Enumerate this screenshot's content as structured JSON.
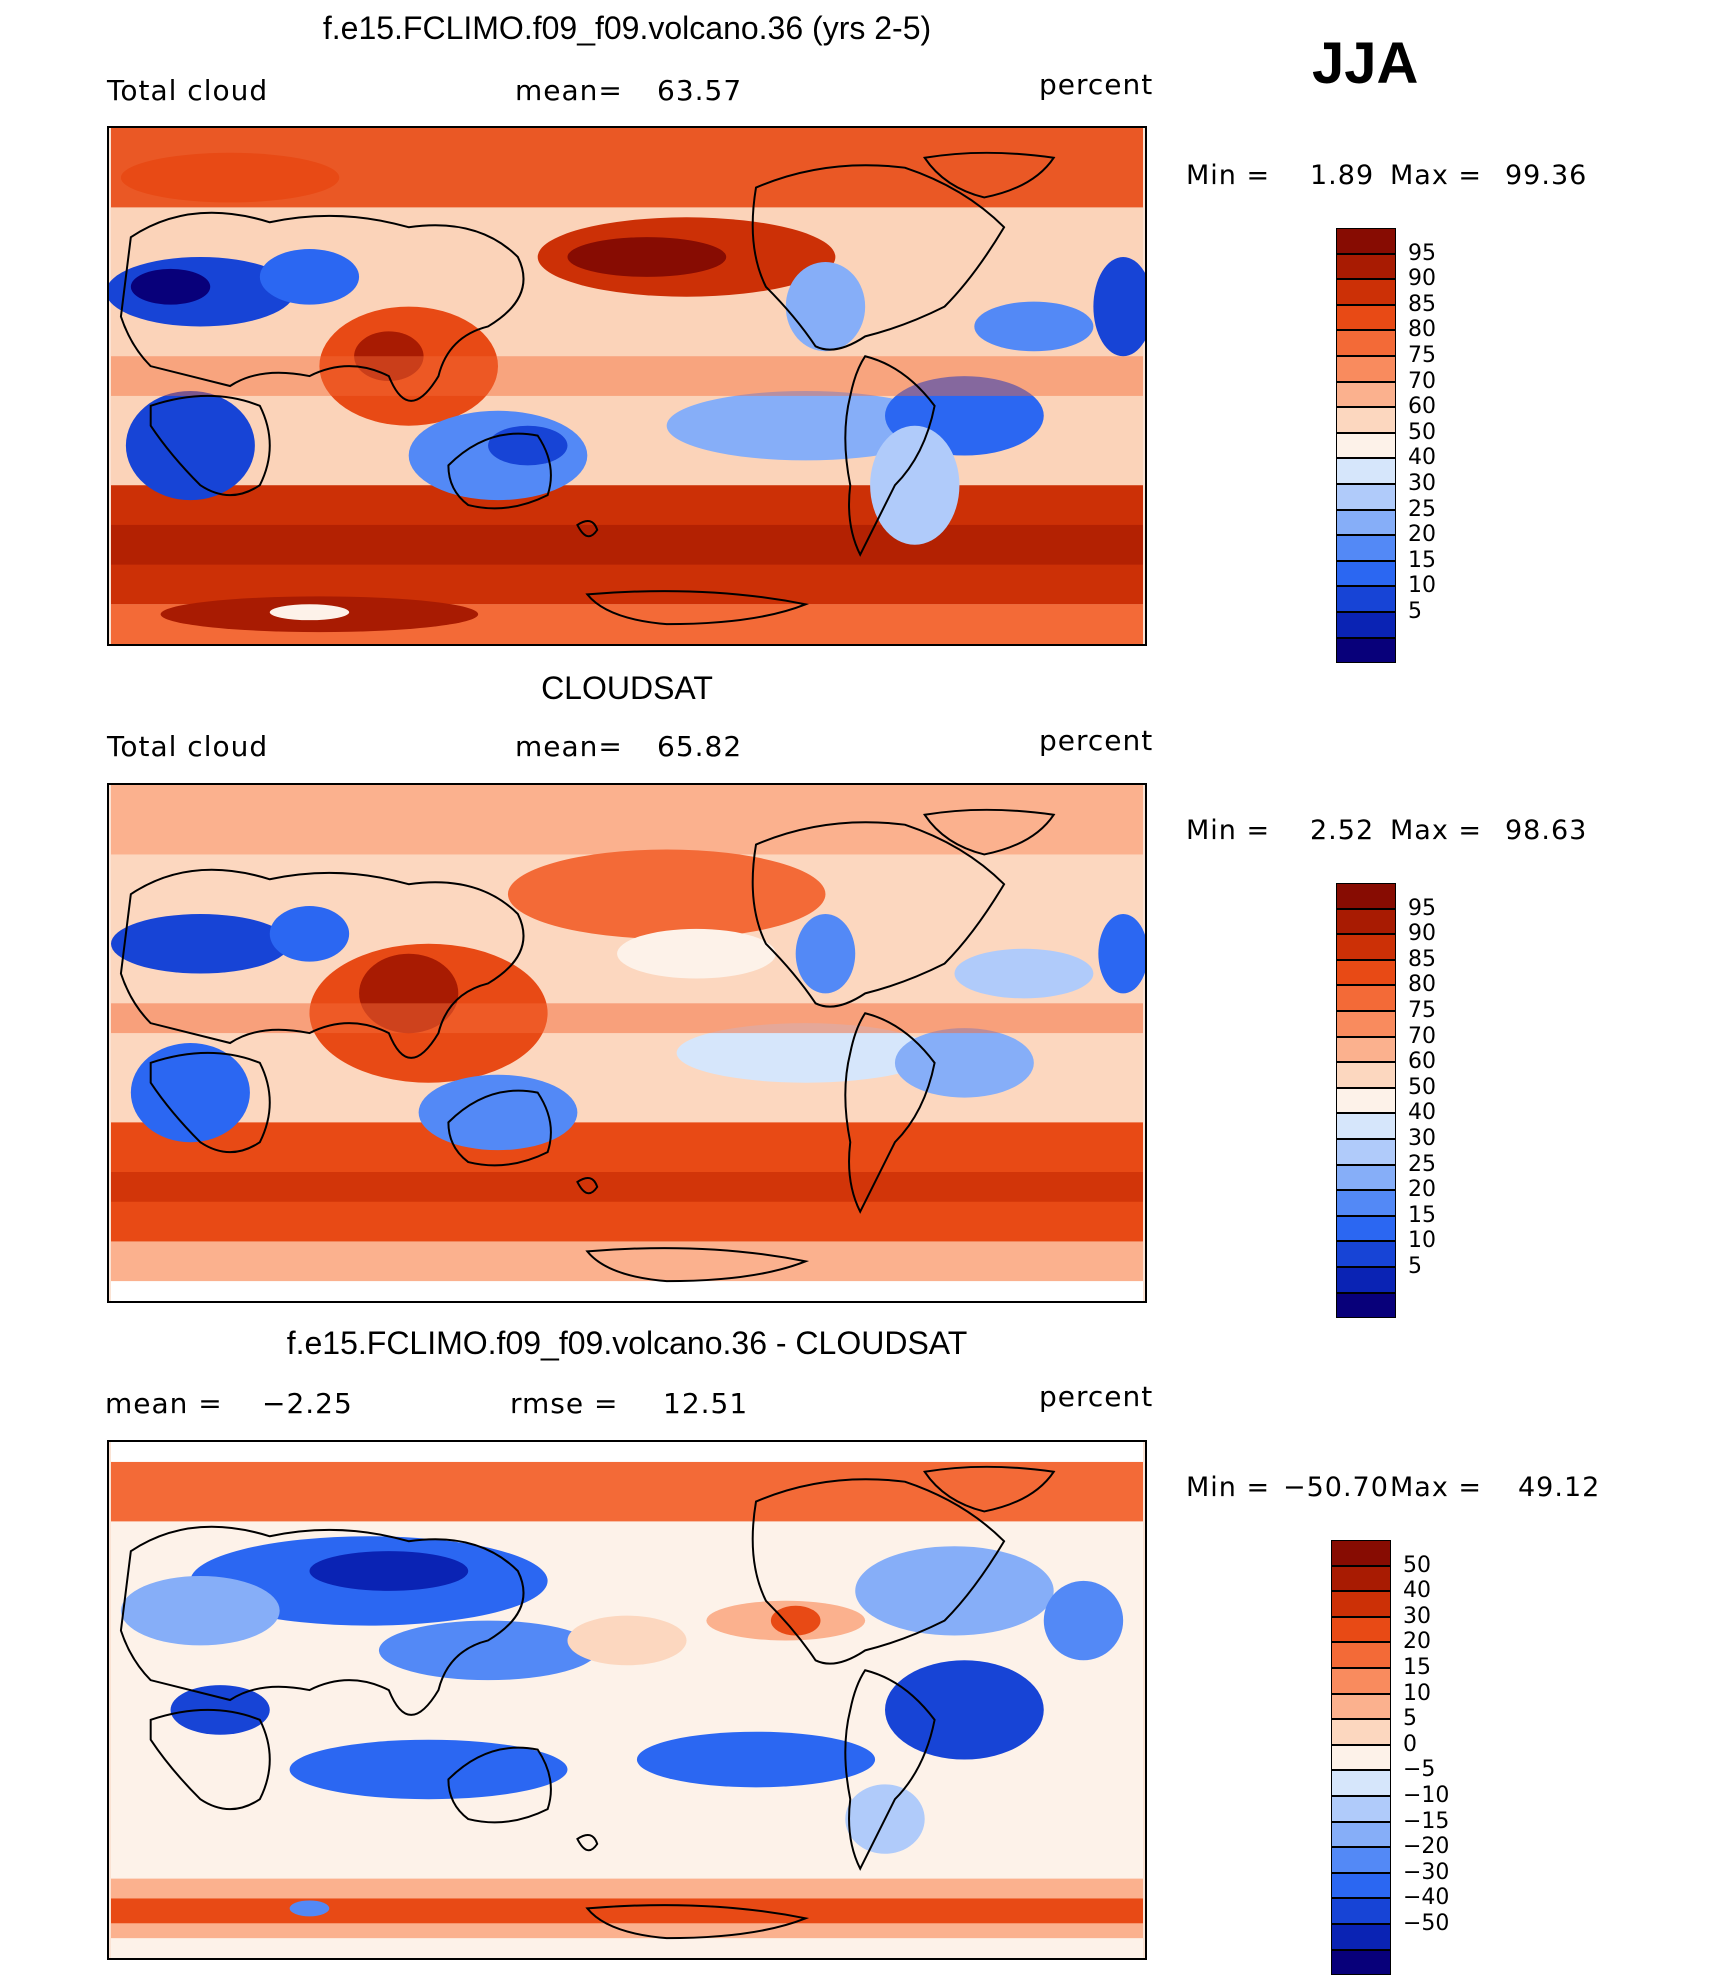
{
  "season": "JJA",
  "colors": {
    "scale": [
      "#08007a",
      "#0a23b4",
      "#1744d6",
      "#2b67f2",
      "#5389f6",
      "#86aef8",
      "#b0cbfa",
      "#d6e6fb",
      "#fdf2e9",
      "#fcd7bf",
      "#fbb18e",
      "#f98b5e",
      "#f36a37",
      "#e84a15",
      "#cc3006",
      "#a81b02",
      "#870c02"
    ],
    "continent_outline": "#000000"
  },
  "panels": [
    {
      "title": "f.e15.FCLIMO.f09_f09.volcano.36 (yrs 2-5)",
      "left_label": "Total cloud",
      "center_label": "mean=",
      "center_value": "63.57",
      "right_label": "percent",
      "min_label": "Min =",
      "min_value": "1.89",
      "max_label": "Max =",
      "max_value": "99.36",
      "colorbar_labels": [
        "95",
        "90",
        "85",
        "80",
        "75",
        "70",
        "60",
        "50",
        "40",
        "30",
        "25",
        "20",
        "15",
        "10",
        "5"
      ]
    },
    {
      "title": "CLOUDSAT",
      "left_label": "Total cloud",
      "center_label": "mean=",
      "center_value": "65.82",
      "right_label": "percent",
      "min_label": "Min =",
      "min_value": "2.52",
      "max_label": "Max =",
      "max_value": "98.63",
      "colorbar_labels": [
        "95",
        "90",
        "85",
        "80",
        "75",
        "70",
        "60",
        "50",
        "40",
        "30",
        "25",
        "20",
        "15",
        "10",
        "5"
      ]
    },
    {
      "title": "f.e15.FCLIMO.f09_f09.volcano.36 - CLOUDSAT",
      "left_label": "mean =",
      "left_value": "−2.25",
      "center_label": "rmse =",
      "center_value": "12.51",
      "right_label": "percent",
      "min_label": "Min =",
      "min_value": "−50.70",
      "max_label": "Max =",
      "max_value": "49.12",
      "colorbar_labels": [
        "50",
        "40",
        "30",
        "20",
        "15",
        "10",
        "5",
        "0",
        "−5",
        "−10",
        "−15",
        "−20",
        "−30",
        "−40",
        "−50"
      ]
    }
  ],
  "chart_data": [
    {
      "type": "heatmap",
      "title": "f.e15.FCLIMO.f09_f09.volcano.36 (yrs 2-5)",
      "variable": "Total cloud",
      "units": "percent",
      "mean": 63.57,
      "min": 1.89,
      "max": 99.36,
      "levels": [
        5,
        10,
        15,
        20,
        25,
        30,
        40,
        50,
        60,
        70,
        75,
        80,
        85,
        90,
        95
      ]
    },
    {
      "type": "heatmap",
      "title": "CLOUDSAT",
      "variable": "Total cloud",
      "units": "percent",
      "mean": 65.82,
      "min": 2.52,
      "max": 98.63,
      "levels": [
        5,
        10,
        15,
        20,
        25,
        30,
        40,
        50,
        60,
        70,
        75,
        80,
        85,
        90,
        95
      ]
    },
    {
      "type": "heatmap",
      "title": "f.e15.FCLIMO.f09_f09.volcano.36 - CLOUDSAT",
      "units": "percent",
      "mean": -2.25,
      "rmse": 12.51,
      "min": -50.7,
      "max": 49.12,
      "levels": [
        -50,
        -40,
        -30,
        -20,
        -15,
        -10,
        -5,
        0,
        5,
        10,
        15,
        20,
        30,
        40,
        50
      ]
    }
  ]
}
